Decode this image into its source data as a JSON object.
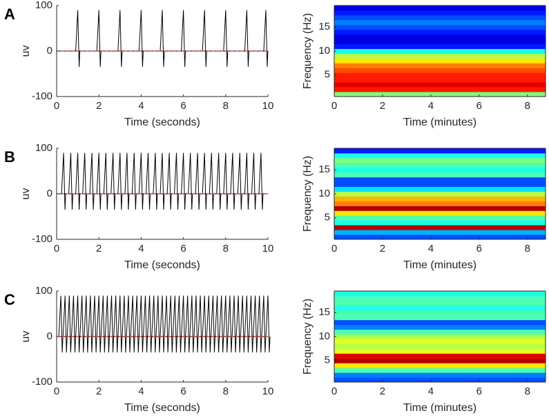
{
  "chart_data": [
    {
      "type": "spikes",
      "panel_label": "A",
      "ylabel": "uv",
      "xlabel": "Time (seconds)",
      "xlim": [
        0,
        10
      ],
      "ylim": [
        -100,
        100
      ],
      "xticks": [
        0,
        2,
        4,
        6,
        8,
        10
      ],
      "yticks": [
        -100,
        0,
        100
      ],
      "spike_times": [
        1,
        2,
        3,
        4,
        5,
        6,
        7,
        8,
        9,
        9.9
      ],
      "spike_peak": 90,
      "spike_trough": -35,
      "color": "#000000",
      "baseline": 0,
      "baseline_color": "#d62728"
    },
    {
      "type": "heatmap",
      "ylabel": "Frequency (Hz)",
      "xlabel": "Time (minutes)",
      "xlim": [
        0,
        8.75
      ],
      "ylim": [
        0.5,
        19.5
      ],
      "xticks": [
        0,
        2,
        4,
        6,
        8
      ],
      "yticks": [
        5,
        10,
        15
      ],
      "frequencies": [
        1,
        2,
        3,
        4,
        5,
        6,
        7,
        8,
        9,
        10,
        11,
        12,
        13,
        14,
        15,
        16,
        17,
        18,
        19
      ],
      "power": [
        0.5,
        0.85,
        0.9,
        0.85,
        0.85,
        0.8,
        0.75,
        0.65,
        0.55,
        0.4,
        0.15,
        0.1,
        0.1,
        0.15,
        0.2,
        0.25,
        0.2,
        0.15,
        0.1
      ],
      "colormap": "jet"
    },
    {
      "type": "spikes",
      "panel_label": "B",
      "ylabel": "uv",
      "xlabel": "Time (seconds)",
      "xlim": [
        0,
        10
      ],
      "ylim": [
        -100,
        100
      ],
      "xticks": [
        0,
        2,
        4,
        6,
        8,
        10
      ],
      "yticks": [
        -100,
        0,
        100
      ],
      "spike_times": [
        0.33,
        0.67,
        1,
        1.33,
        1.67,
        2,
        2.33,
        2.67,
        3,
        3.33,
        3.67,
        4,
        4.33,
        4.67,
        5,
        5.33,
        5.67,
        6,
        6.33,
        6.67,
        7,
        7.33,
        7.67,
        8,
        8.33,
        8.67,
        9,
        9.33,
        9.67
      ],
      "spike_peak": 90,
      "spike_trough": -35,
      "color": "#000000",
      "baseline": 0,
      "baseline_color": "#d62728"
    },
    {
      "type": "heatmap",
      "ylabel": "Frequency (Hz)",
      "xlabel": "Time (minutes)",
      "xlim": [
        0,
        8.75
      ],
      "ylim": [
        0.5,
        19.5
      ],
      "xticks": [
        0,
        2,
        4,
        6,
        8
      ],
      "yticks": [
        5,
        10,
        15
      ],
      "frequencies": [
        1,
        2,
        3,
        4,
        5,
        6,
        7,
        8,
        9,
        10,
        11,
        12,
        13,
        14,
        15,
        16,
        17,
        18,
        19
      ],
      "power": [
        0.2,
        0.3,
        0.95,
        0.4,
        0.45,
        0.65,
        0.95,
        0.75,
        0.7,
        0.55,
        0.35,
        0.2,
        0.2,
        0.45,
        0.4,
        0.45,
        0.5,
        0.4,
        0.15
      ],
      "colormap": "jet"
    },
    {
      "type": "spikes",
      "panel_label": "C",
      "ylabel": "uv",
      "xlabel": "Time (seconds)",
      "xlim": [
        0,
        10
      ],
      "ylim": [
        -100,
        100
      ],
      "xticks": [
        0,
        2,
        4,
        6,
        8,
        10
      ],
      "yticks": [
        -100,
        0,
        100
      ],
      "spike_times": [
        0.2,
        0.4,
        0.6,
        0.8,
        1,
        1.2,
        1.4,
        1.6,
        1.8,
        2,
        2.2,
        2.4,
        2.6,
        2.8,
        3,
        3.2,
        3.4,
        3.6,
        3.8,
        4,
        4.2,
        4.4,
        4.6,
        4.8,
        5,
        5.2,
        5.4,
        5.6,
        5.8,
        6,
        6.2,
        6.4,
        6.6,
        6.8,
        7,
        7.2,
        7.4,
        7.6,
        7.8,
        8,
        8.2,
        8.4,
        8.6,
        8.8,
        9,
        9.2,
        9.4,
        9.6,
        9.8,
        10
      ],
      "spike_peak": 90,
      "spike_trough": -35,
      "color": "#000000",
      "baseline": 0,
      "baseline_color": "#d62728"
    },
    {
      "type": "heatmap",
      "ylabel": "Frequency (Hz)",
      "xlabel": "Time (minutes)",
      "xlim": [
        0,
        8.75
      ],
      "ylim": [
        0.5,
        19.5
      ],
      "xticks": [
        0,
        2,
        4,
        6,
        8
      ],
      "yticks": [
        5,
        10,
        15
      ],
      "frequencies": [
        1,
        2,
        3,
        4,
        5,
        6,
        7,
        8,
        9,
        10,
        11,
        12,
        13,
        14,
        15,
        16,
        17,
        18,
        19
      ],
      "power": [
        0.2,
        0.25,
        0.45,
        0.65,
        0.95,
        0.9,
        0.6,
        0.55,
        0.6,
        0.55,
        0.45,
        0.25,
        0.2,
        0.45,
        0.45,
        0.4,
        0.45,
        0.45,
        0.4
      ],
      "colormap": "jet"
    }
  ]
}
